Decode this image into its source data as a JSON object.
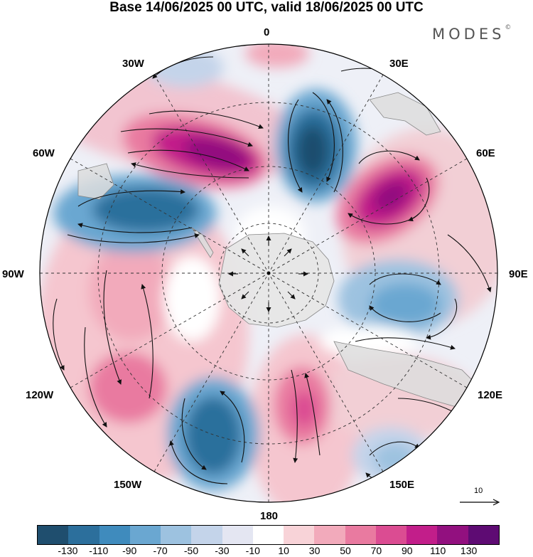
{
  "header": {
    "title": "Base 14/06/2025 00 UTC, valid 18/06/2025 00 UTC",
    "brand": "MODES",
    "brand_mark": "©"
  },
  "map": {
    "projection": "south-polar-stereographic",
    "longitude_labels": {
      "deg0": "0",
      "deg30e": "30E",
      "deg60e": "60E",
      "deg90e": "90E",
      "deg120e": "120E",
      "deg150e": "150E",
      "deg180": "180",
      "deg150w": "150W",
      "deg120w": "120W",
      "deg90w": "90W",
      "deg60w": "60W",
      "deg30w": "30W"
    },
    "graticule": "dashed",
    "vectors": "streamlines with arrowheads",
    "reference_vector_label": "10"
  },
  "colorbar": {
    "colors": [
      "#1f4e6e",
      "#2c6f9c",
      "#3f8bbd",
      "#6aa7d1",
      "#9dc2e0",
      "#c4d4ea",
      "#e4e6f2",
      "#ffffff",
      "#f8d3d8",
      "#f2aabb",
      "#e97aa0",
      "#db4c92",
      "#c21e8a",
      "#92107f",
      "#5e0b73"
    ],
    "tick_labels": [
      "-130",
      "-110",
      "-90",
      "-70",
      "-50",
      "-30",
      "-10",
      "10",
      "30",
      "50",
      "70",
      "90",
      "110",
      "130"
    ]
  },
  "colors": {
    "land": "#e6e6e6",
    "coast": "#888888",
    "graticule": "#333333"
  }
}
